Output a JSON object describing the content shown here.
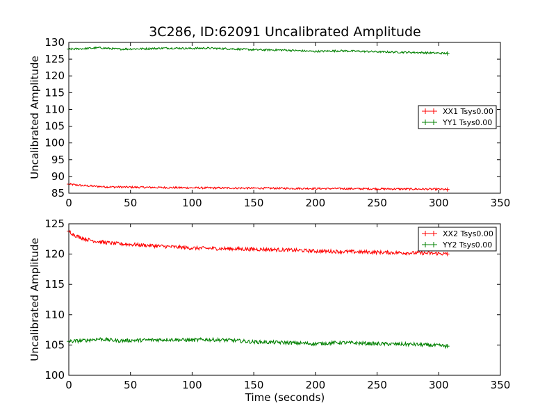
{
  "chart_data": [
    {
      "type": "line",
      "title": "3C286, ID:62091 Uncalibrated Amplitude",
      "xlabel": "",
      "ylabel": "Uncalibrated Amplitude",
      "xlim": [
        0,
        350
      ],
      "ylim": [
        85,
        130
      ],
      "xticks": [
        0,
        50,
        100,
        150,
        200,
        250,
        300,
        350
      ],
      "yticks": [
        85,
        90,
        95,
        100,
        105,
        110,
        115,
        120,
        125,
        130
      ],
      "grid": false,
      "legend_position": "center-right",
      "series": [
        {
          "name": "XX1 Tsys0.00",
          "color": "#ff0000",
          "noise": 0.28,
          "x": [
            0,
            5,
            10,
            20,
            30,
            50,
            75,
            100,
            150,
            200,
            250,
            300,
            307
          ],
          "y": [
            87.7,
            87.5,
            87.3,
            87.1,
            86.9,
            86.8,
            86.7,
            86.6,
            86.5,
            86.4,
            86.3,
            86.2,
            86.1
          ]
        },
        {
          "name": "YY1 Tsys0.00",
          "color": "#008000",
          "noise": 0.28,
          "x": [
            0,
            10,
            25,
            40,
            60,
            80,
            100,
            110,
            130,
            150,
            175,
            200,
            220,
            250,
            280,
            300,
            307
          ],
          "y": [
            128.0,
            128.1,
            128.4,
            128.0,
            128.1,
            128.3,
            128.2,
            128.3,
            128.1,
            127.8,
            127.7,
            127.3,
            127.5,
            127.2,
            127.0,
            126.8,
            126.7
          ]
        }
      ]
    },
    {
      "type": "line",
      "title": "",
      "xlabel": "Time (seconds)",
      "ylabel": "Uncalibrated Amplitude",
      "xlim": [
        0,
        350
      ],
      "ylim": [
        100,
        125
      ],
      "xticks": [
        0,
        50,
        100,
        150,
        200,
        250,
        300,
        350
      ],
      "yticks": [
        100,
        105,
        110,
        115,
        120,
        125
      ],
      "grid": false,
      "legend_position": "top-right",
      "series": [
        {
          "name": "XX2 Tsys0.00",
          "color": "#ff0000",
          "noise": 0.3,
          "x": [
            0,
            2,
            5,
            10,
            15,
            20,
            30,
            40,
            50,
            75,
            100,
            125,
            150,
            175,
            200,
            225,
            250,
            275,
            300,
            307
          ],
          "y": [
            123.8,
            123.5,
            123.1,
            122.7,
            122.4,
            122.2,
            121.9,
            121.7,
            121.6,
            121.3,
            121.0,
            120.9,
            120.8,
            120.7,
            120.5,
            120.4,
            120.3,
            120.2,
            120.1,
            120.0
          ]
        },
        {
          "name": "YY2 Tsys0.00",
          "color": "#008000",
          "noise": 0.3,
          "x": [
            0,
            10,
            25,
            40,
            60,
            80,
            100,
            110,
            130,
            150,
            175,
            200,
            220,
            250,
            280,
            300,
            307
          ],
          "y": [
            105.6,
            105.7,
            106.0,
            105.7,
            105.8,
            105.9,
            105.8,
            105.9,
            105.8,
            105.5,
            105.4,
            105.2,
            105.4,
            105.2,
            105.1,
            104.9,
            104.8
          ]
        }
      ]
    }
  ]
}
